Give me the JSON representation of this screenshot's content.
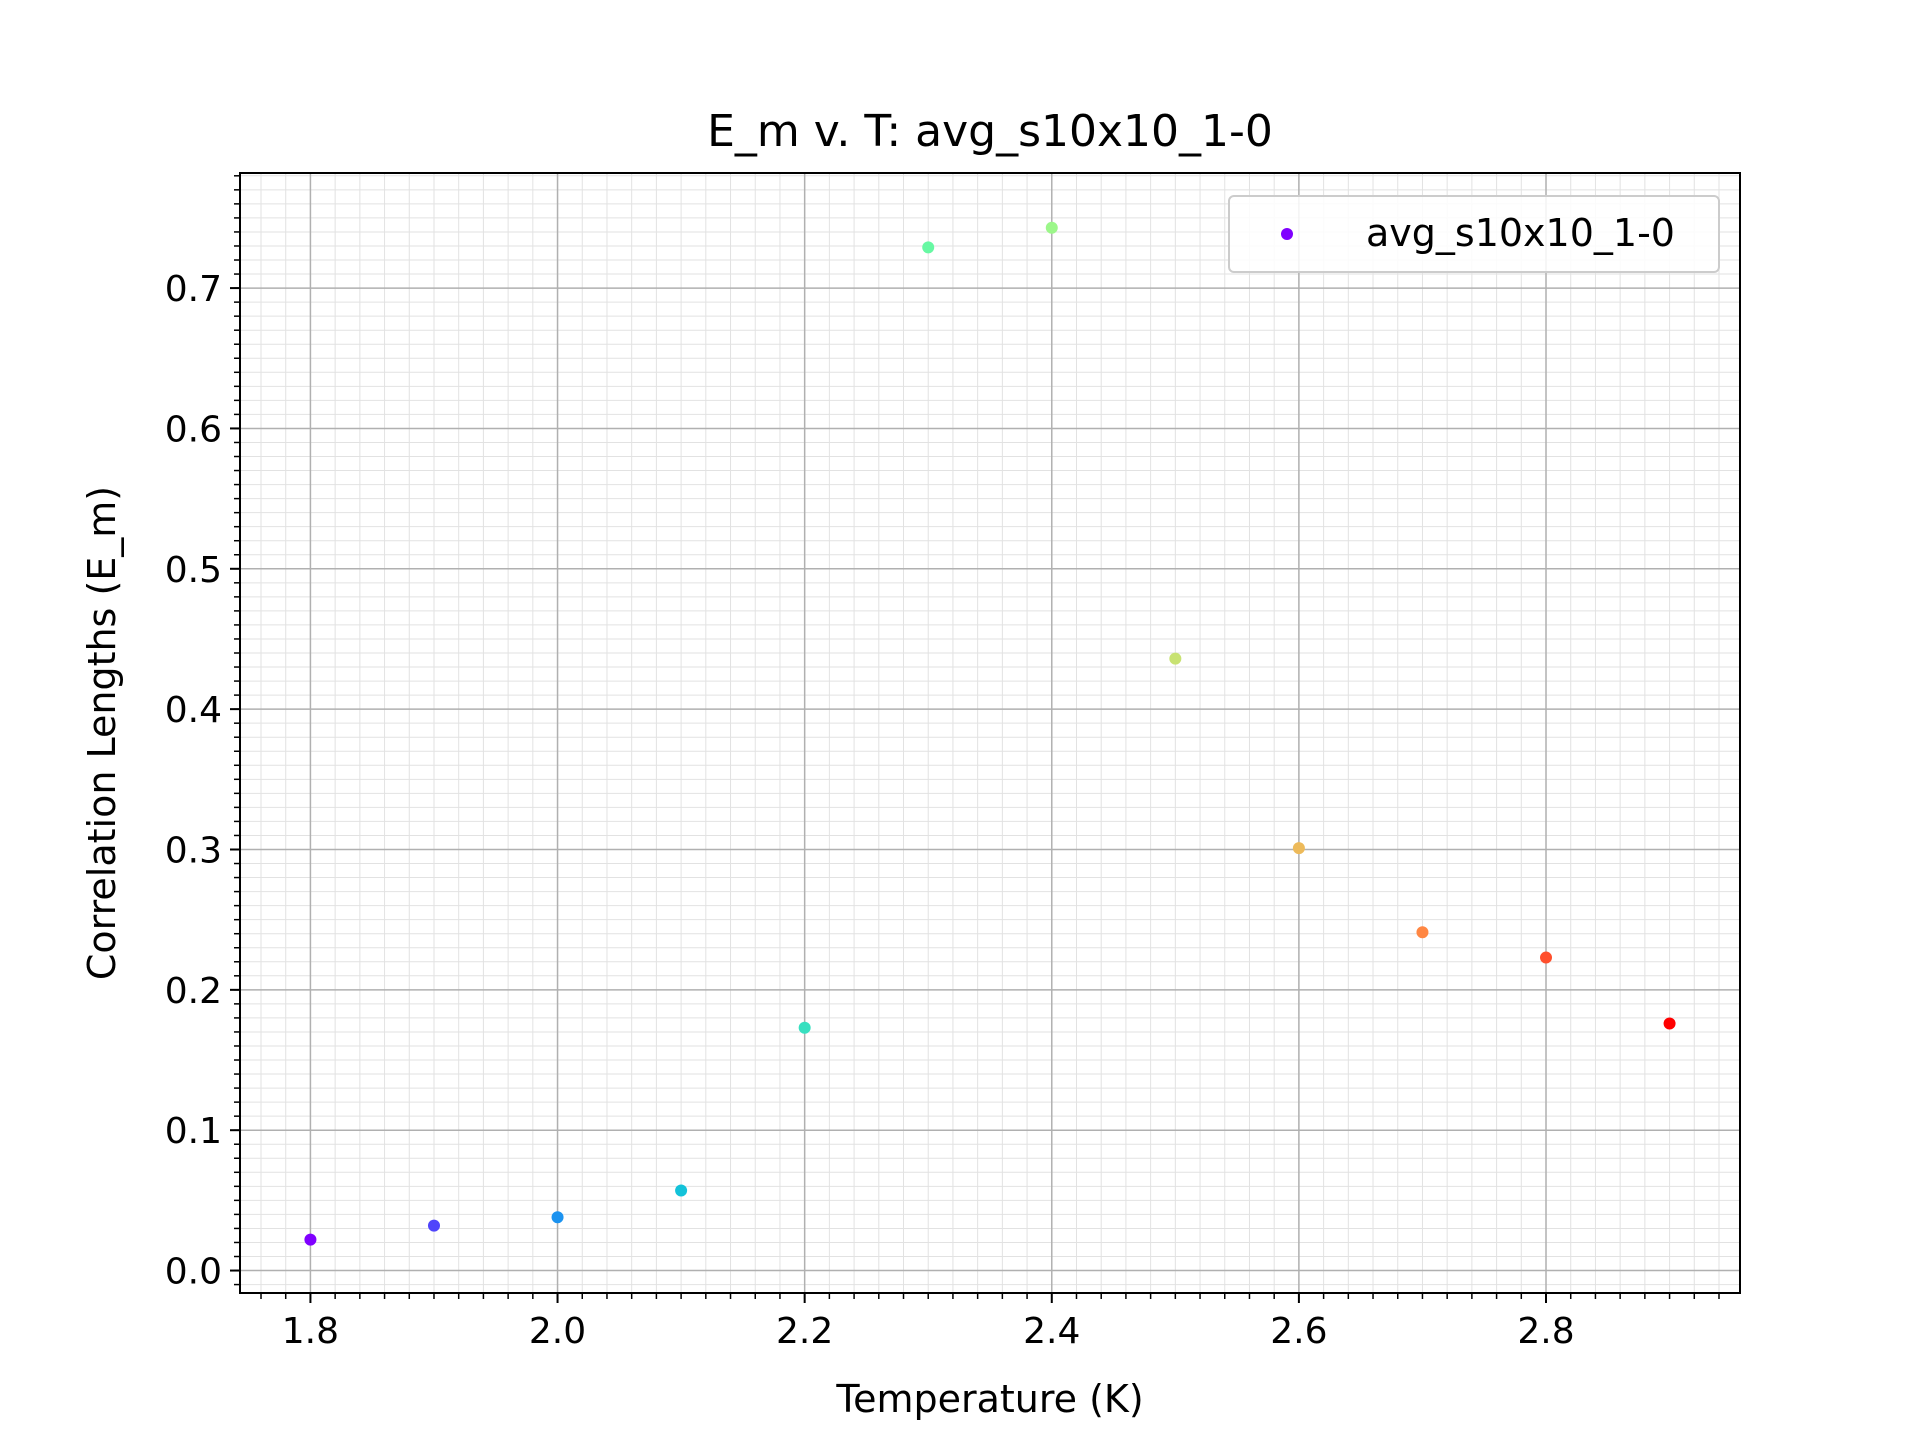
{
  "chart_data": {
    "type": "scatter",
    "title": "E_m v. T: avg_s10x10_1-0",
    "xlabel": "Temperature (K)",
    "ylabel": "Correlation Lengths (E_m)",
    "xlim": [
      1.743,
      2.957
    ],
    "ylim": [
      -0.016,
      0.782
    ],
    "x_ticks": [
      1.8,
      2.0,
      2.2,
      2.4,
      2.6,
      2.8
    ],
    "x_tick_labels": [
      "1.8",
      "2.0",
      "2.2",
      "2.4",
      "2.6",
      "2.8"
    ],
    "y_ticks": [
      0.0,
      0.1,
      0.2,
      0.3,
      0.4,
      0.5,
      0.6,
      0.7
    ],
    "y_tick_labels": [
      "0.0",
      "0.1",
      "0.2",
      "0.3",
      "0.4",
      "0.5",
      "0.6",
      "0.7"
    ],
    "grid": true,
    "minor_grid": true,
    "legend_position": "upper-right",
    "series": [
      {
        "name": "avg_s10x10_1-0",
        "legend_color": "#8000ff",
        "x": [
          1.8,
          1.9,
          2.0,
          2.1,
          2.2,
          2.3,
          2.4,
          2.5,
          2.6,
          2.7,
          2.8,
          2.9
        ],
        "y": [
          0.022,
          0.032,
          0.038,
          0.057,
          0.173,
          0.729,
          0.743,
          0.436,
          0.301,
          0.241,
          0.223,
          0.176
        ],
        "colors": [
          "#8000ff",
          "#4f44fb",
          "#1c93f0",
          "#13c2d9",
          "#37e0c0",
          "#67f8a3",
          "#9cf78a",
          "#c8e272",
          "#edba5a",
          "#ff8743",
          "#ff4f2c",
          "#ff0000"
        ]
      }
    ]
  }
}
